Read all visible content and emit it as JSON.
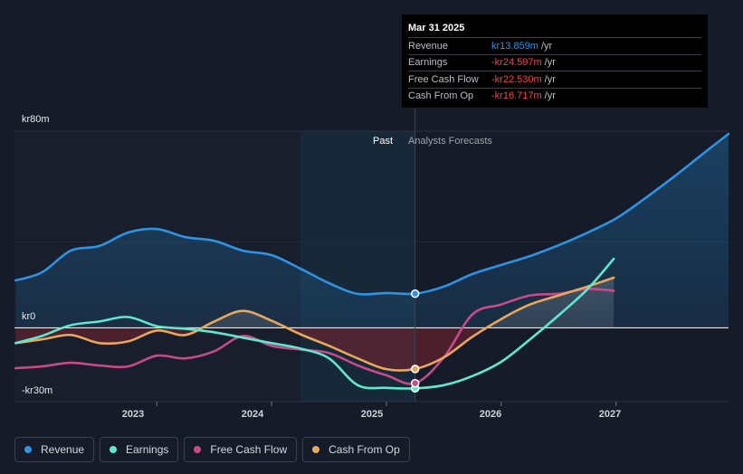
{
  "tooltip": {
    "date": "Mar 31 2025",
    "rows": [
      {
        "label": "Revenue",
        "value": "kr13.859m",
        "unit": "/yr",
        "color": "#2e93e4"
      },
      {
        "label": "Earnings",
        "value": "-kr24.597m",
        "unit": "/yr",
        "color": "#ee4444"
      },
      {
        "label": "Free Cash Flow",
        "value": "-kr22.530m",
        "unit": "/yr",
        "color": "#ee4444"
      },
      {
        "label": "Cash From Op",
        "value": "-kr16.717m",
        "unit": "/yr",
        "color": "#ee4444"
      }
    ]
  },
  "regions": {
    "past_label": "Past",
    "forecast_label": "Analysts Forecasts"
  },
  "legend": [
    {
      "label": "Revenue",
      "color": "#2e93e4"
    },
    {
      "label": "Earnings",
      "color": "#5ee8d0"
    },
    {
      "label": "Free Cash Flow",
      "color": "#c74a8a"
    },
    {
      "label": "Cash From Op",
      "color": "#e8a75a"
    }
  ],
  "chart_data": {
    "type": "line",
    "title": "",
    "xlabel": "",
    "ylabel": "",
    "x_ticks": [
      "2023",
      "2024",
      "2025",
      "2026",
      "2027"
    ],
    "x_tick_values": [
      2023.0,
      2024.0,
      2025.0,
      2026.0,
      2027.0
    ],
    "y_ticks": [
      "kr80m",
      "kr0",
      "-kr30m"
    ],
    "y_tick_values": [
      80,
      0,
      -30
    ],
    "ylim": [
      -30,
      80
    ],
    "xlim": [
      2021.76,
      2027.98
    ],
    "divider_x": 2025.25,
    "highlight_start_x": 2024.25,
    "series": [
      {
        "name": "Revenue",
        "color": "#2e93e4",
        "points": [
          [
            2021.77,
            19.3
          ],
          [
            2022.0,
            22.6
          ],
          [
            2022.25,
            31.4
          ],
          [
            2022.5,
            33.3
          ],
          [
            2022.75,
            38.8
          ],
          [
            2023.0,
            40.2
          ],
          [
            2023.25,
            36.9
          ],
          [
            2023.5,
            35.4
          ],
          [
            2023.75,
            31.4
          ],
          [
            2024.0,
            29.6
          ],
          [
            2024.25,
            24.1
          ],
          [
            2024.5,
            18.2
          ],
          [
            2024.75,
            13.8
          ],
          [
            2025.0,
            14.2
          ],
          [
            2025.25,
            13.9
          ],
          [
            2025.5,
            16.8
          ],
          [
            2025.75,
            21.9
          ],
          [
            2026.0,
            25.6
          ],
          [
            2026.25,
            29.2
          ],
          [
            2026.5,
            33.6
          ],
          [
            2026.75,
            38.7
          ],
          [
            2027.0,
            44.5
          ],
          [
            2027.25,
            52.6
          ],
          [
            2027.5,
            61.3
          ],
          [
            2027.75,
            70.5
          ],
          [
            2027.98,
            78.9
          ]
        ]
      },
      {
        "name": "Earnings",
        "color": "#5ee8d0",
        "points": [
          [
            2021.77,
            -6.2
          ],
          [
            2022.0,
            -3.3
          ],
          [
            2022.25,
            1.1
          ],
          [
            2022.5,
            2.6
          ],
          [
            2022.75,
            4.4
          ],
          [
            2023.0,
            0.7
          ],
          [
            2023.25,
            -0.4
          ],
          [
            2023.5,
            -1.8
          ],
          [
            2023.75,
            -4.0
          ],
          [
            2024.0,
            -6.2
          ],
          [
            2024.25,
            -8.4
          ],
          [
            2024.5,
            -12.4
          ],
          [
            2024.75,
            -23.3
          ],
          [
            2025.0,
            -24.4
          ],
          [
            2025.25,
            -24.6
          ],
          [
            2025.5,
            -23.3
          ],
          [
            2025.75,
            -19.6
          ],
          [
            2026.0,
            -13.8
          ],
          [
            2026.25,
            -4.7
          ],
          [
            2026.5,
            5.1
          ],
          [
            2026.75,
            15.7
          ],
          [
            2026.98,
            28.1
          ]
        ]
      },
      {
        "name": "Free Cash Flow",
        "color": "#c74a8a",
        "points": [
          [
            2021.77,
            -16.4
          ],
          [
            2022.0,
            -15.7
          ],
          [
            2022.25,
            -14.2
          ],
          [
            2022.5,
            -15.3
          ],
          [
            2022.75,
            -15.7
          ],
          [
            2023.0,
            -11.3
          ],
          [
            2023.25,
            -12.4
          ],
          [
            2023.5,
            -9.5
          ],
          [
            2023.75,
            -3.3
          ],
          [
            2024.0,
            -7.3
          ],
          [
            2024.25,
            -8.8
          ],
          [
            2024.5,
            -10.2
          ],
          [
            2024.75,
            -15.3
          ],
          [
            2025.0,
            -19.3
          ],
          [
            2025.25,
            -22.5
          ],
          [
            2025.5,
            -12.0
          ],
          [
            2025.75,
            5.5
          ],
          [
            2026.0,
            9.5
          ],
          [
            2026.25,
            13.2
          ],
          [
            2026.5,
            13.9
          ],
          [
            2026.75,
            15.8
          ],
          [
            2026.98,
            15.1
          ]
        ]
      },
      {
        "name": "Cash From Op",
        "color": "#e8a75a",
        "points": [
          [
            2021.77,
            -6.2
          ],
          [
            2022.0,
            -4.7
          ],
          [
            2022.25,
            -2.9
          ],
          [
            2022.5,
            -6.2
          ],
          [
            2022.75,
            -5.5
          ],
          [
            2023.0,
            -1.1
          ],
          [
            2023.25,
            -2.9
          ],
          [
            2023.5,
            2.6
          ],
          [
            2023.75,
            6.9
          ],
          [
            2024.0,
            2.9
          ],
          [
            2024.25,
            -2.6
          ],
          [
            2024.5,
            -7.3
          ],
          [
            2024.75,
            -12.4
          ],
          [
            2025.0,
            -16.8
          ],
          [
            2025.25,
            -16.7
          ],
          [
            2025.5,
            -12.0
          ],
          [
            2025.75,
            -3.6
          ],
          [
            2026.0,
            3.6
          ],
          [
            2026.25,
            9.5
          ],
          [
            2026.5,
            13.2
          ],
          [
            2026.75,
            16.8
          ],
          [
            2026.98,
            20.4
          ]
        ]
      }
    ],
    "highlight_point": {
      "x": 2025.25,
      "series_values": {
        "Revenue": 13.9,
        "Earnings": -24.6,
        "Free Cash Flow": -22.5,
        "Cash From Op": -16.7
      }
    }
  }
}
